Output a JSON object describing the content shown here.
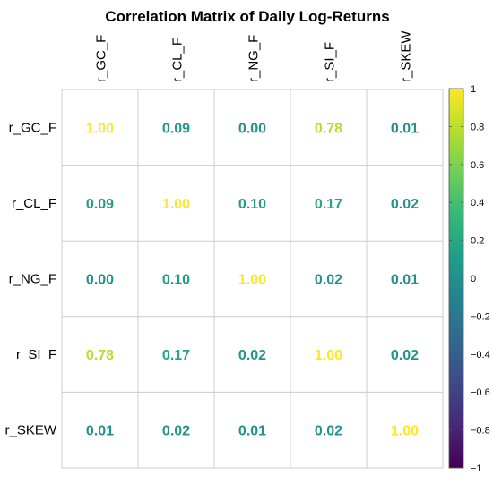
{
  "chart_data": {
    "type": "heatmap",
    "title": "Correlation Matrix of Daily Log-Returns",
    "variables": [
      "r_GC_F",
      "r_CL_F",
      "r_NG_F",
      "r_SI_F",
      "r_SKEW"
    ],
    "values": [
      [
        1.0,
        0.09,
        0.0,
        0.78,
        0.01
      ],
      [
        0.09,
        1.0,
        0.1,
        0.17,
        0.02
      ],
      [
        0.0,
        0.1,
        1.0,
        0.02,
        0.01
      ],
      [
        0.78,
        0.17,
        0.02,
        1.0,
        0.02
      ],
      [
        0.01,
        0.02,
        0.01,
        0.02,
        1.0
      ]
    ],
    "cell_labels": [
      [
        "1.00",
        "0.09",
        "0.00",
        "0.78",
        "0.01"
      ],
      [
        "0.09",
        "1.00",
        "0.10",
        "0.17",
        "0.02"
      ],
      [
        "0.00",
        "0.10",
        "1.00",
        "0.02",
        "0.01"
      ],
      [
        "0.78",
        "0.17",
        "0.02",
        "1.00",
        "0.02"
      ],
      [
        "0.01",
        "0.02",
        "0.01",
        "0.02",
        "1.00"
      ]
    ],
    "colorbar": {
      "range": [
        -1,
        1
      ],
      "ticks": [
        1,
        0.8,
        0.6,
        0.4,
        0.2,
        0,
        -0.2,
        -0.4,
        -0.6,
        -0.8,
        -1
      ],
      "tick_labels": [
        "1",
        "0.8",
        "0.6",
        "0.4",
        "0.2",
        "0",
        "−0.2",
        "−0.4",
        "−0.6",
        "−0.8",
        "−1"
      ],
      "colormap": "viridis",
      "placement": "right"
    },
    "grid": true
  }
}
